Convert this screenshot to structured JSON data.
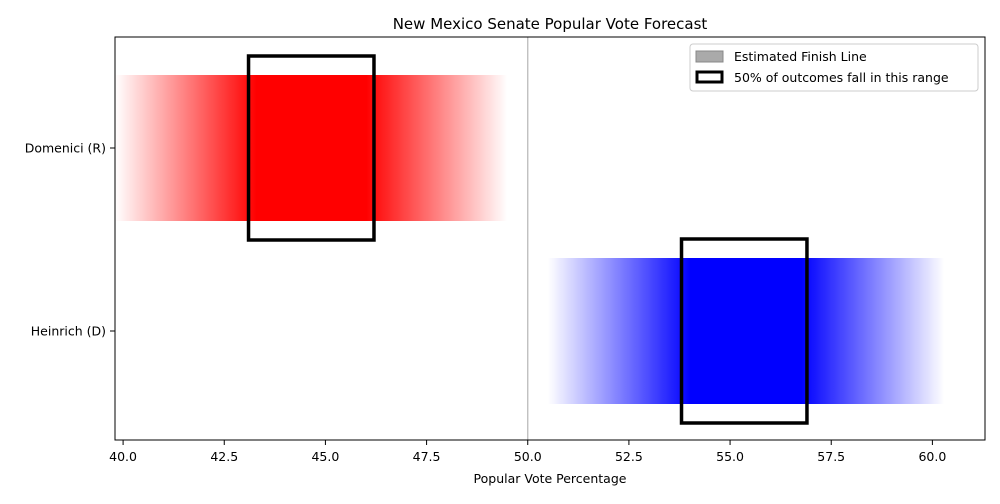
{
  "chart_data": {
    "type": "bar",
    "title": "New Mexico Senate Popular Vote Forecast",
    "xlabel": "Popular Vote Percentage",
    "ylabel": "",
    "xlim": [
      39.8,
      61.3
    ],
    "xticks": [
      "40.0",
      "42.5",
      "45.0",
      "47.5",
      "50.0",
      "52.5",
      "55.0",
      "57.5",
      "60.0"
    ],
    "xtick_values": [
      40.0,
      42.5,
      45.0,
      47.5,
      50.0,
      52.5,
      55.0,
      57.5,
      60.0
    ],
    "finish_line": 50.0,
    "grid": false,
    "legend_position": "top-right",
    "legend": [
      {
        "label": "Estimated Finish Line",
        "kind": "filled",
        "color": "#aaaaaa"
      },
      {
        "label": "50% of outcomes fall in this range",
        "kind": "outlined",
        "color": "#000000"
      }
    ],
    "series": [
      {
        "category": "Domenici (R)",
        "color": "#ff0000",
        "range_low": 39.8,
        "range_high": 49.5,
        "iqr_low": 43.1,
        "iqr_high": 46.2
      },
      {
        "category": "Heinrich (D)",
        "color": "#0000ff",
        "range_low": 50.5,
        "range_high": 60.3,
        "iqr_low": 53.8,
        "iqr_high": 56.9
      }
    ]
  }
}
